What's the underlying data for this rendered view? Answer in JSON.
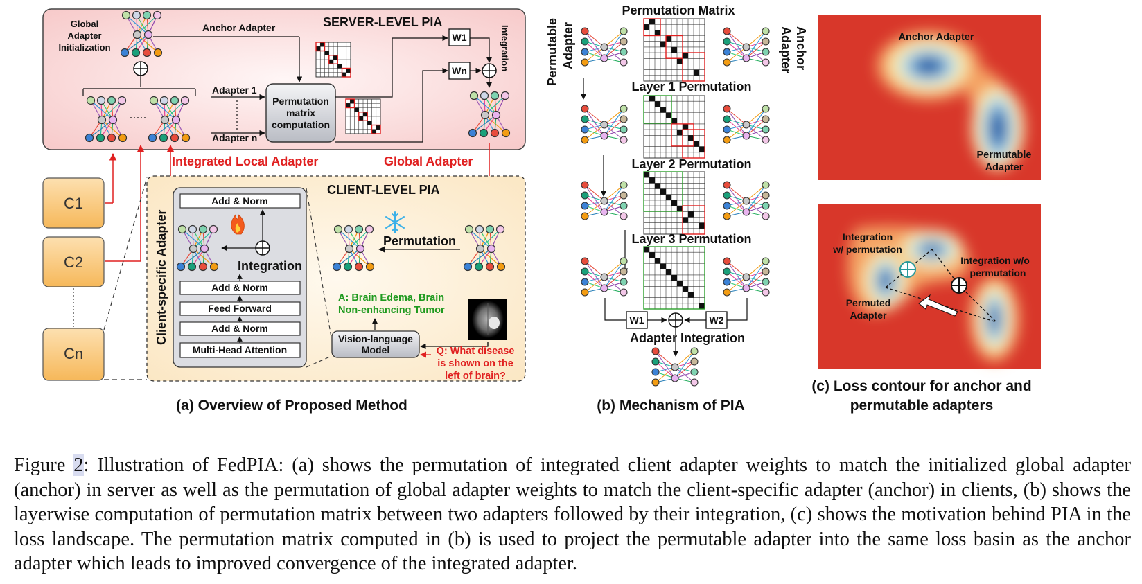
{
  "panel_a": {
    "server_title": "SERVER-LEVEL PIA",
    "global_init_1": "Global",
    "global_init_2": "Adapter",
    "global_init_3": "Initialization",
    "anchor_adapter": "Anchor Adapter",
    "adapter_1": "Adapter 1",
    "adapter_n": "Adapter n",
    "perm_box_1": "Permutation",
    "perm_box_2": "matrix",
    "perm_box_3": "computation",
    "w1": "W1",
    "wn": "Wn",
    "integration_vertical": "Integration",
    "integrated_local": "Integrated Local Adapter",
    "global_adapter": "Global Adapter",
    "c1": "C1",
    "c2": "C2",
    "cn": "Cn",
    "client_title": "CLIENT-LEVEL PIA",
    "client_specific": "Client-specific Adapter",
    "add_norm_top": "Add & Norm",
    "integration": "Integration",
    "add_norm_mid": "Add & Norm",
    "feed_forward": "Feed Forward",
    "add_norm_low": "Add & Norm",
    "mha": "Multi-Head Attention",
    "permutation": "Permutation",
    "answer_1": "A: Brain Edema, Brain",
    "answer_2": "Non-enhancing Tumor",
    "vlm_1": "Vision-language",
    "vlm_2": "Model",
    "question_1": "Q: What disease",
    "question_2": "is shown on the",
    "question_3": "left of brain?",
    "label": "(a) Overview of Proposed Method"
  },
  "panel_b": {
    "title": "Permutation Matrix",
    "permutable_1": "Permutable",
    "permutable_2": "Adapter",
    "anchor_1": "Anchor",
    "anchor_2": "Adapter",
    "layer1": "Layer 1 Permutation",
    "layer2": "Layer 2 Permutation",
    "layer3": "Layer 3 Permutation",
    "w1": "W1",
    "w2": "W2",
    "adapter_integration": "Adapter Integration",
    "label": "(b) Mechanism of PIA"
  },
  "panel_c": {
    "anchor_adapter": "Anchor Adapter",
    "permutable_1": "Permutable",
    "permutable_2": "Adapter",
    "int_w_1": "Integration",
    "int_w_2": "w/ permutation",
    "int_wo_1": "Integration w/o",
    "int_wo_2": "permutation",
    "permuted_1": "Permuted",
    "permuted_2": "Adapter",
    "label_1": "(c) Loss contour for anchor and",
    "label_2": "permutable adapters"
  },
  "caption": {
    "prefix": "Figure ",
    "number": "2",
    "text": ": Illustration of FedPIA: (a) shows the permutation of integrated client adapter weights to match the initialized global adapter (anchor) in server as well as the permutation of global adapter weights to match the client-specific adapter (anchor) in clients, (b) shows the layerwise computation of permutation matrix between two adapters followed by their integration, (c) shows the motivation behind PIA in the loss landscape. The permutation matrix computed in (b) is used to project the permutable adapter into the same loss basin as the anchor adapter which leads to improved convergence of the integrated adapter."
  },
  "colors": {
    "server_bg": "#fbe1e1",
    "client_bg": "#fdf1dc",
    "client_box": "#fbd9a4",
    "red_text": "#e02020",
    "green_text": "#1f9a1f",
    "contour_outer": "#d8372a",
    "contour_core": "#1f4f9c"
  },
  "icons": [
    "fire-icon",
    "snowflake-icon",
    "mri-scan-image"
  ]
}
